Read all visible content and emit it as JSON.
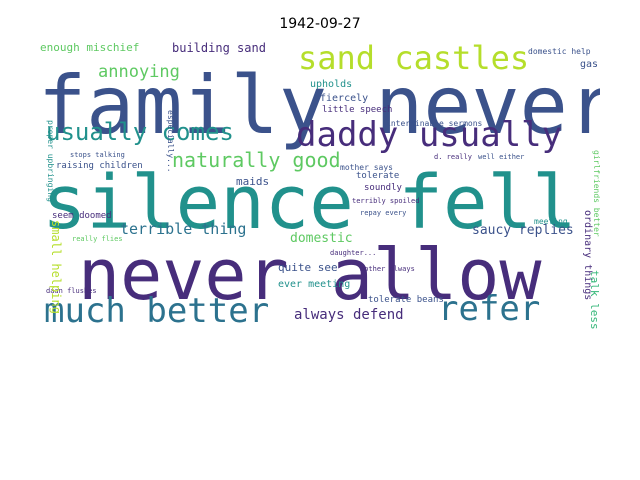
{
  "title": "1942-09-27",
  "colors": {
    "navy": "#3b528b",
    "teal": "#21918c",
    "purple": "#472d7b",
    "green": "#5ec962",
    "lime": "#b5de2b",
    "blue": "#2c728e",
    "seafoam": "#35b779"
  },
  "words": {
    "family_never": "family never",
    "silence_fell": "silence fell",
    "never_allow": "never allow",
    "much_better": "much better",
    "refer": "refer",
    "sand_castles": "sand castles",
    "daddy_usually": "daddy usually",
    "usually_comes": "usually comes",
    "naturally_good": "naturally good",
    "annoying": "annoying",
    "building_sand": "building sand",
    "enough_mischief": "enough mischief",
    "terrible_thing": "terrible thing",
    "saucy_replies": "saucy replies",
    "always_defend": "always defend",
    "domestic": "domestic",
    "quite_see": "quite see",
    "ever_meeting": "ever meeting",
    "maids": "maids",
    "upholds": "upholds",
    "fiercely": "fiercely",
    "little_speech": "little speech",
    "interminable_sermons": "interminable sermons",
    "raising_children": "raising children",
    "proper_upbringing": "proper upbringing",
    "seem_doomed": "seem doomed",
    "small_helping": "small helping",
    "tolerate": "tolerate",
    "soundly": "soundly",
    "repay_every": "repay every",
    "terribly_spoiled": "terribly spoiled",
    "tolerate_beans": "tolerate beans",
    "mother_always": "mother always",
    "talk_less": "talk less",
    "ordinary_things": "ordinary things",
    "domestic_help": "domestic help",
    "gas": "gas",
    "d_really": "d. really",
    "well_either": "well either",
    "mother_says": "mother says",
    "daughter": "daughter...",
    "daan_flushes": "daan flushes",
    "stops_talking": "stops talking",
    "really_flies": "really flies",
    "meeting": "meeting",
    "girlfriends_better": "girlfriends better",
    "especially": "especially..."
  }
}
